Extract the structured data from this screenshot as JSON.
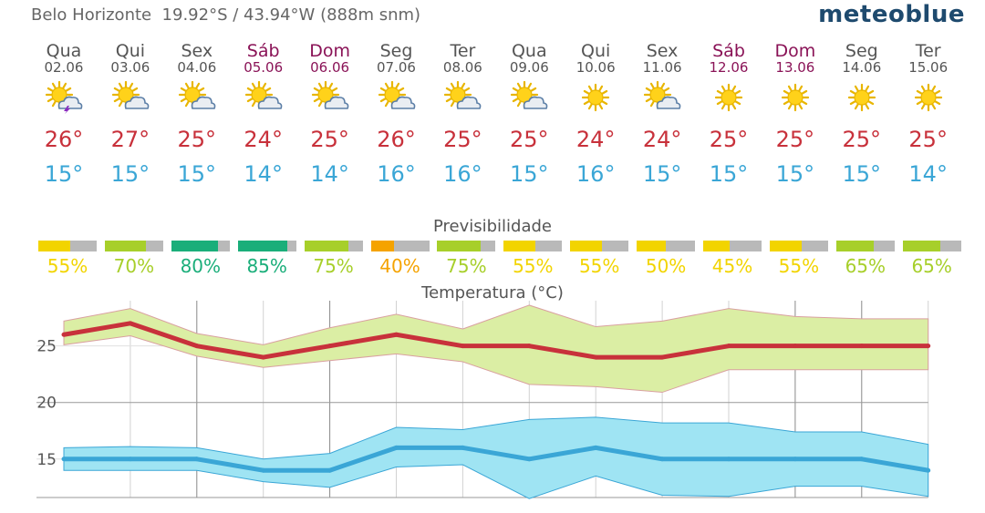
{
  "header": {
    "location": "Belo Horizonte  19.92°S / 43.94°W (888m snm)",
    "brand": "meteoblue"
  },
  "forecast": [
    {
      "day": "Qua",
      "date": "02.06",
      "weekend": false,
      "icon": "sun-cloud-thunder-icon",
      "tmax": "26°",
      "tmin": "15°",
      "predict": "55%",
      "predict_value": 55,
      "predict_color": "#f2d400"
    },
    {
      "day": "Qui",
      "date": "03.06",
      "weekend": false,
      "icon": "sun-cloud-icon",
      "tmax": "27°",
      "tmin": "15°",
      "predict": "70%",
      "predict_value": 70,
      "predict_color": "#a7cf2a"
    },
    {
      "day": "Sex",
      "date": "04.06",
      "weekend": false,
      "icon": "sun-cloud-icon",
      "tmax": "25°",
      "tmin": "15°",
      "predict": "80%",
      "predict_value": 80,
      "predict_color": "#1aae7a"
    },
    {
      "day": "Sáb",
      "date": "05.06",
      "weekend": true,
      "icon": "sun-cloud-icon",
      "tmax": "24°",
      "tmin": "14°",
      "predict": "85%",
      "predict_value": 85,
      "predict_color": "#1aae7a"
    },
    {
      "day": "Dom",
      "date": "06.06",
      "weekend": true,
      "icon": "sun-cloud-icon",
      "tmax": "25°",
      "tmin": "14°",
      "predict": "75%",
      "predict_value": 75,
      "predict_color": "#a7cf2a"
    },
    {
      "day": "Seg",
      "date": "07.06",
      "weekend": false,
      "icon": "sun-cloud-icon",
      "tmax": "26°",
      "tmin": "16°",
      "predict": "40%",
      "predict_value": 40,
      "predict_color": "#f5a300"
    },
    {
      "day": "Ter",
      "date": "08.06",
      "weekend": false,
      "icon": "sun-cloud-icon",
      "tmax": "25°",
      "tmin": "16°",
      "predict": "75%",
      "predict_value": 75,
      "predict_color": "#a7cf2a"
    },
    {
      "day": "Qua",
      "date": "09.06",
      "weekend": false,
      "icon": "sun-cloud-icon",
      "tmax": "25°",
      "tmin": "15°",
      "predict": "55%",
      "predict_value": 55,
      "predict_color": "#f2d400"
    },
    {
      "day": "Qui",
      "date": "10.06",
      "weekend": false,
      "icon": "sun-icon",
      "tmax": "24°",
      "tmin": "16°",
      "predict": "55%",
      "predict_value": 55,
      "predict_color": "#f2d400"
    },
    {
      "day": "Sex",
      "date": "11.06",
      "weekend": false,
      "icon": "sun-cloud-icon",
      "tmax": "24°",
      "tmin": "15°",
      "predict": "50%",
      "predict_value": 50,
      "predict_color": "#f2d400"
    },
    {
      "day": "Sáb",
      "date": "12.06",
      "weekend": true,
      "icon": "sun-icon",
      "tmax": "25°",
      "tmin": "15°",
      "predict": "45%",
      "predict_value": 45,
      "predict_color": "#f2d400"
    },
    {
      "day": "Dom",
      "date": "13.06",
      "weekend": true,
      "icon": "sun-icon",
      "tmax": "25°",
      "tmin": "15°",
      "predict": "55%",
      "predict_value": 55,
      "predict_color": "#f2d400"
    },
    {
      "day": "Seg",
      "date": "14.06",
      "weekend": false,
      "icon": "sun-icon",
      "tmax": "25°",
      "tmin": "15°",
      "predict": "65%",
      "predict_value": 65,
      "predict_color": "#a7cf2a"
    },
    {
      "day": "Ter",
      "date": "15.06",
      "weekend": false,
      "icon": "sun-icon",
      "tmax": "25°",
      "tmin": "14°",
      "predict": "65%",
      "predict_value": 65,
      "predict_color": "#a7cf2a"
    }
  ],
  "predictability_title": "Previsibilidade",
  "colors": {
    "max_line": "#c8313b",
    "min_line": "#3aa6d6",
    "max_band": "#dbeea4",
    "min_band": "#9fe4f3",
    "grid": "#cccccc"
  },
  "chart_data": {
    "type": "line",
    "title": "Temperatura (°C)",
    "x": [
      "02.06",
      "03.06",
      "04.06",
      "05.06",
      "06.06",
      "07.06",
      "08.06",
      "09.06",
      "10.06",
      "11.06",
      "12.06",
      "13.06",
      "14.06",
      "15.06"
    ],
    "yticks": [
      15,
      20,
      25
    ],
    "ylim": [
      11.6,
      29
    ],
    "grid": true,
    "series": [
      {
        "values": [
          26,
          27,
          25,
          24,
          25,
          26,
          25,
          25,
          24,
          24,
          25,
          25,
          25,
          25
        ],
        "band_upper": [
          27.2,
          28.3,
          26.1,
          25.1,
          26.6,
          27.8,
          26.5,
          28.6,
          26.7,
          27.2,
          28.3,
          27.6,
          27.4,
          27.4
        ],
        "band_lower": [
          25.1,
          25.9,
          24.1,
          23.1,
          23.7,
          24.3,
          23.6,
          21.6,
          21.4,
          20.9,
          22.9,
          22.9,
          22.9,
          22.9
        ]
      },
      {
        "values": [
          15,
          15,
          15,
          14,
          14,
          16,
          16,
          15,
          16,
          15,
          15,
          15,
          15,
          14
        ],
        "band_upper": [
          16.0,
          16.1,
          16.0,
          15.0,
          15.5,
          17.8,
          17.6,
          18.5,
          18.7,
          18.2,
          18.2,
          17.4,
          17.4,
          16.3
        ],
        "band_lower": [
          14.0,
          14.0,
          14.0,
          13.0,
          12.5,
          14.3,
          14.5,
          11.5,
          13.5,
          11.8,
          11.7,
          12.6,
          12.6,
          11.7
        ]
      }
    ]
  }
}
